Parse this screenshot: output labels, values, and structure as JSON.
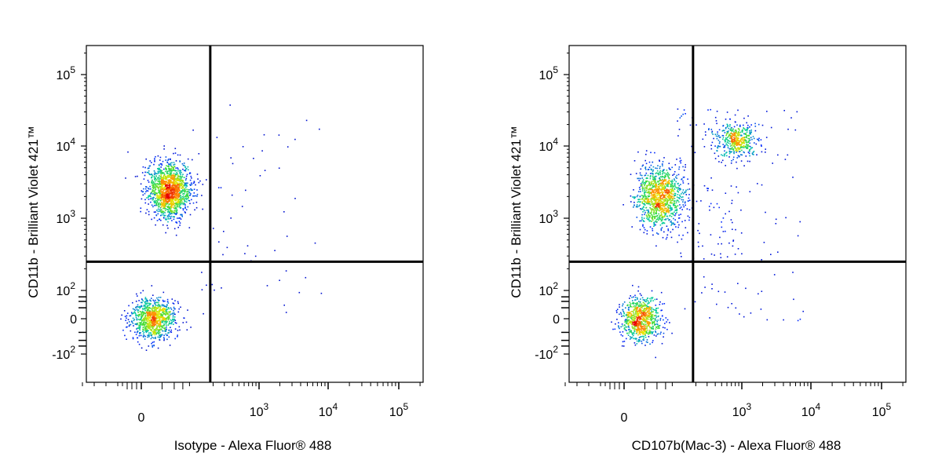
{
  "figure": {
    "panels": [
      {
        "xlabel": "Isotype - Alexa Fluor® 488",
        "ylabel": "CD11b - Brilliant Violet 421™"
      },
      {
        "xlabel": "CD107b(Mac-3) - Alexa Fluor® 488",
        "ylabel": "CD11b - Brilliant Violet 421™"
      }
    ]
  },
  "chart_data": [
    {
      "type": "scatter",
      "title": "",
      "xlabel": "Isotype - Alexa Fluor® 488",
      "ylabel": "CD11b - Brilliant Violet 421™",
      "x_scale": "biexponential",
      "y_scale": "biexponential",
      "xlim": [
        -300,
        250000
      ],
      "ylim": [
        -700,
        250000
      ],
      "x_ticks": [
        {
          "value": 0,
          "label": "0"
        },
        {
          "value": 1000,
          "label": "10^3"
        },
        {
          "value": 10000,
          "label": "10^4"
        },
        {
          "value": 100000,
          "label": "10^5"
        }
      ],
      "y_ticks": [
        {
          "value": -100,
          "label": "-10^2"
        },
        {
          "value": 0,
          "label": "0"
        },
        {
          "value": 100,
          "label": "10^2"
        },
        {
          "value": 1000,
          "label": "10^3"
        },
        {
          "value": 10000,
          "label": "10^4"
        },
        {
          "value": 100000,
          "label": "10^5"
        }
      ],
      "quadrant_gates": {
        "x": 180,
        "y": 250
      },
      "color_scale": "density pseudocolor (blue → green → yellow → red)",
      "grid": false,
      "populations": [
        {
          "name": "",
          "x_center": 10,
          "y_center": 0,
          "x_spread": 30,
          "y_spread": 45,
          "count": 950,
          "max_density_color": "red"
        },
        {
          "name": "",
          "x_center": 30,
          "y_center": 2500,
          "x_spread": 45,
          "y_spread": 3000,
          "count": 1500,
          "max_density_color": "yellow"
        }
      ],
      "sparse_events_upper_right": 40,
      "sparse_events_lower_right": 15
    },
    {
      "type": "scatter",
      "title": "",
      "xlabel": "CD107b(Mac-3) - Alexa Fluor® 488",
      "ylabel": "CD11b - Brilliant Violet 421™",
      "x_scale": "biexponential",
      "y_scale": "biexponential",
      "xlim": [
        -300,
        250000
      ],
      "ylim": [
        -700,
        250000
      ],
      "x_ticks": [
        {
          "value": 0,
          "label": "0"
        },
        {
          "value": 1000,
          "label": "10^3"
        },
        {
          "value": 10000,
          "label": "10^4"
        },
        {
          "value": 100000,
          "label": "10^5"
        }
      ],
      "y_ticks": [
        {
          "value": -100,
          "label": "-10^2"
        },
        {
          "value": 0,
          "label": "0"
        },
        {
          "value": 100,
          "label": "10^2"
        },
        {
          "value": 1000,
          "label": "10^3"
        },
        {
          "value": 10000,
          "label": "10^4"
        },
        {
          "value": 100000,
          "label": "10^5"
        }
      ],
      "quadrant_gates": {
        "x": 180,
        "y": 250
      },
      "color_scale": "density pseudocolor (blue → green → yellow → red)",
      "grid": false,
      "populations": [
        {
          "name": "",
          "x_center": 15,
          "y_center": 0,
          "x_spread": 30,
          "y_spread": 45,
          "count": 800,
          "max_density_color": "red"
        },
        {
          "name": "",
          "x_center": 45,
          "y_center": 2000,
          "x_spread": 60,
          "y_spread": 3000,
          "count": 1150,
          "max_density_color": "green"
        },
        {
          "name": "",
          "x_center": 800,
          "y_center": 12000,
          "x_spread": 700,
          "y_spread": 8000,
          "count": 450,
          "max_density_color": "blue"
        }
      ],
      "sparse_events_upper_right": 160,
      "sparse_events_lower_right": 30
    }
  ]
}
